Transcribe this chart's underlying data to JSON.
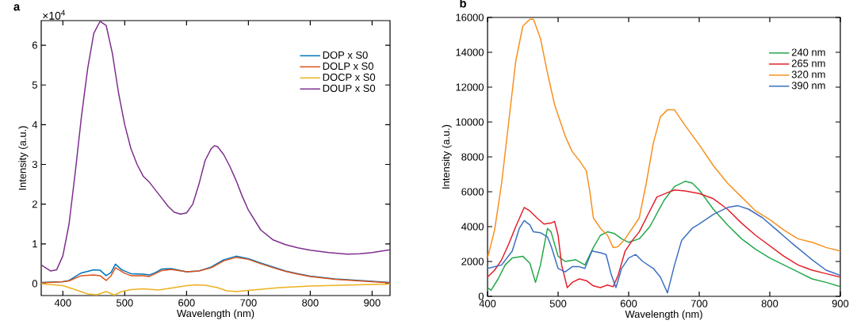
{
  "chart_data": [
    {
      "type": "line",
      "title": "a",
      "xlabel": "Wavelength (nm)",
      "ylabel": "Intensity (a.u.)",
      "annotations": [
        "×10$^{4}$"
      ],
      "xlim": [
        365,
        929
      ],
      "ylim": [
        -0.3,
        6.62
      ],
      "xticks": [
        400,
        500,
        600,
        700,
        800,
        900
      ],
      "yticks": [
        0,
        1,
        2,
        3,
        4,
        5,
        6
      ],
      "legend": "top right",
      "series": [
        {
          "name": "DOP x S0",
          "color": "#0072bd",
          "x": [
            365,
            400,
            410,
            430,
            450,
            460,
            470,
            478,
            485,
            495,
            510,
            530,
            540,
            550,
            560,
            575,
            600,
            620,
            640,
            660,
            680,
            700,
            720,
            740,
            760,
            780,
            800,
            840,
            880,
            929
          ],
          "values": [
            0.03,
            0.05,
            0.08,
            0.27,
            0.35,
            0.34,
            0.2,
            0.28,
            0.49,
            0.35,
            0.25,
            0.24,
            0.22,
            0.28,
            0.37,
            0.38,
            0.3,
            0.32,
            0.42,
            0.6,
            0.69,
            0.63,
            0.52,
            0.42,
            0.32,
            0.25,
            0.19,
            0.12,
            0.08,
            0.03
          ]
        },
        {
          "name": "DOLP x S0",
          "color": "#d95319",
          "x": [
            365,
            400,
            410,
            430,
            450,
            460,
            470,
            478,
            485,
            500,
            510,
            530,
            540,
            560,
            575,
            600,
            620,
            640,
            660,
            680,
            700,
            720,
            740,
            760,
            780,
            800,
            840,
            880,
            929
          ],
          "values": [
            0.02,
            0.05,
            0.07,
            0.2,
            0.22,
            0.2,
            0.08,
            0.2,
            0.4,
            0.26,
            0.2,
            0.2,
            0.18,
            0.33,
            0.36,
            0.3,
            0.32,
            0.4,
            0.57,
            0.66,
            0.61,
            0.5,
            0.4,
            0.31,
            0.24,
            0.18,
            0.11,
            0.07,
            0.02
          ]
        },
        {
          "name": "DOCP x S0",
          "color": "#edb120",
          "x": [
            365,
            400,
            420,
            440,
            455,
            470,
            478,
            483,
            495,
            510,
            530,
            555,
            580,
            600,
            615,
            630,
            650,
            665,
            680,
            700,
            750,
            800,
            850,
            900,
            929
          ],
          "values": [
            0,
            -0.05,
            -0.15,
            -0.26,
            -0.28,
            -0.2,
            -0.25,
            -0.29,
            -0.2,
            -0.15,
            -0.13,
            -0.16,
            -0.1,
            -0.05,
            -0.03,
            -0.04,
            -0.1,
            -0.18,
            -0.2,
            -0.17,
            -0.1,
            -0.06,
            -0.04,
            -0.02,
            -0.01
          ]
        },
        {
          "name": "DOUP x S0",
          "color": "#7e2f8e",
          "x": [
            365,
            380,
            390,
            400,
            410,
            420,
            430,
            440,
            450,
            460,
            470,
            480,
            490,
            500,
            510,
            520,
            530,
            540,
            550,
            560,
            570,
            580,
            590,
            600,
            610,
            620,
            630,
            640,
            645,
            650,
            660,
            670,
            680,
            690,
            700,
            720,
            740,
            760,
            780,
            800,
            830,
            860,
            880,
            900,
            929
          ],
          "values": [
            0.47,
            0.32,
            0.35,
            0.7,
            1.5,
            2.8,
            4.2,
            5.4,
            6.3,
            6.6,
            6.5,
            5.8,
            4.8,
            4.0,
            3.4,
            3.0,
            2.7,
            2.55,
            2.35,
            2.15,
            1.95,
            1.8,
            1.75,
            1.78,
            2.0,
            2.5,
            3.1,
            3.4,
            3.47,
            3.45,
            3.25,
            2.95,
            2.6,
            2.2,
            1.85,
            1.35,
            1.1,
            0.98,
            0.9,
            0.84,
            0.78,
            0.74,
            0.75,
            0.78,
            0.85
          ]
        }
      ]
    },
    {
      "type": "line",
      "title": "b",
      "xlabel": "Wavelength (nm)",
      "ylabel": "Intensity (a.u.)",
      "xlim": [
        400,
        900
      ],
      "ylim": [
        0,
        16000
      ],
      "xticks": [
        400,
        500,
        600,
        700,
        800,
        900
      ],
      "yticks": [
        0,
        2000,
        4000,
        6000,
        8000,
        10000,
        12000,
        14000,
        16000
      ],
      "legend": "top right",
      "series": [
        {
          "name": "240 nm",
          "color": "#22a84a",
          "x": [
            400,
            405,
            415,
            425,
            435,
            450,
            460,
            468,
            475,
            485,
            490,
            500,
            510,
            525,
            538,
            550,
            560,
            570,
            580,
            590,
            600,
            615,
            630,
            650,
            665,
            680,
            690,
            700,
            720,
            740,
            760,
            780,
            800,
            820,
            840,
            860,
            880,
            900
          ],
          "values": [
            500,
            350,
            1000,
            1800,
            2200,
            2300,
            1900,
            800,
            1800,
            3900,
            3700,
            2300,
            2000,
            2100,
            1800,
            2800,
            3500,
            3700,
            3600,
            3300,
            3100,
            3300,
            4000,
            5500,
            6300,
            6600,
            6500,
            6100,
            5000,
            4100,
            3300,
            2700,
            2200,
            1800,
            1400,
            1000,
            800,
            550
          ]
        },
        {
          "name": "265 nm",
          "color": "#e3202a",
          "x": [
            400,
            410,
            420,
            430,
            440,
            452,
            460,
            470,
            480,
            490,
            495,
            500,
            505,
            513,
            520,
            530,
            540,
            550,
            560,
            570,
            578,
            585,
            595,
            605,
            615,
            625,
            640,
            655,
            665,
            680,
            700,
            720,
            740,
            760,
            780,
            800,
            820,
            840,
            860,
            880,
            900
          ],
          "values": [
            1100,
            1500,
            2100,
            3000,
            4000,
            5100,
            4900,
            4500,
            4150,
            4200,
            4300,
            3500,
            1800,
            500,
            800,
            1000,
            900,
            600,
            500,
            650,
            550,
            1200,
            2600,
            3200,
            3700,
            4500,
            5700,
            5950,
            6100,
            6050,
            5900,
            5600,
            5000,
            4200,
            3500,
            2900,
            2300,
            1800,
            1500,
            1300,
            1100
          ]
        },
        {
          "name": "320 nm",
          "color": "#f7901e",
          "x": [
            400,
            410,
            420,
            430,
            440,
            450,
            460,
            465,
            475,
            485,
            495,
            510,
            520,
            530,
            540,
            545,
            550,
            560,
            570,
            578,
            585,
            595,
            605,
            615,
            625,
            635,
            645,
            655,
            665,
            680,
            700,
            720,
            740,
            760,
            780,
            800,
            820,
            840,
            860,
            880,
            900
          ],
          "values": [
            2200,
            3800,
            6500,
            10000,
            13500,
            15500,
            15900,
            15900,
            14800,
            12800,
            11000,
            9200,
            8300,
            7800,
            7200,
            6000,
            4500,
            3900,
            3500,
            2800,
            2850,
            3300,
            3900,
            4500,
            6500,
            8800,
            10300,
            10700,
            10700,
            9800,
            8700,
            7500,
            6500,
            5700,
            4900,
            4400,
            3800,
            3300,
            3100,
            2800,
            2600
          ]
        },
        {
          "name": "390 nm",
          "color": "#3b6fc1",
          "x": [
            400,
            420,
            435,
            445,
            452,
            460,
            465,
            475,
            485,
            490,
            500,
            510,
            520,
            530,
            538,
            548,
            560,
            568,
            575,
            582,
            590,
            600,
            610,
            620,
            635,
            645,
            655,
            665,
            675,
            690,
            700,
            720,
            740,
            755,
            770,
            790,
            810,
            830,
            860,
            880,
            900
          ],
          "values": [
            1600,
            1800,
            2600,
            3900,
            4350,
            4100,
            3700,
            3650,
            3400,
            2900,
            1600,
            1400,
            1700,
            1700,
            1600,
            2600,
            2500,
            2400,
            1300,
            500,
            1600,
            2200,
            2400,
            2000,
            1600,
            1100,
            200,
            1800,
            3200,
            3900,
            4150,
            4700,
            5100,
            5200,
            5000,
            4500,
            3800,
            3100,
            2100,
            1500,
            1200
          ]
        }
      ]
    }
  ]
}
